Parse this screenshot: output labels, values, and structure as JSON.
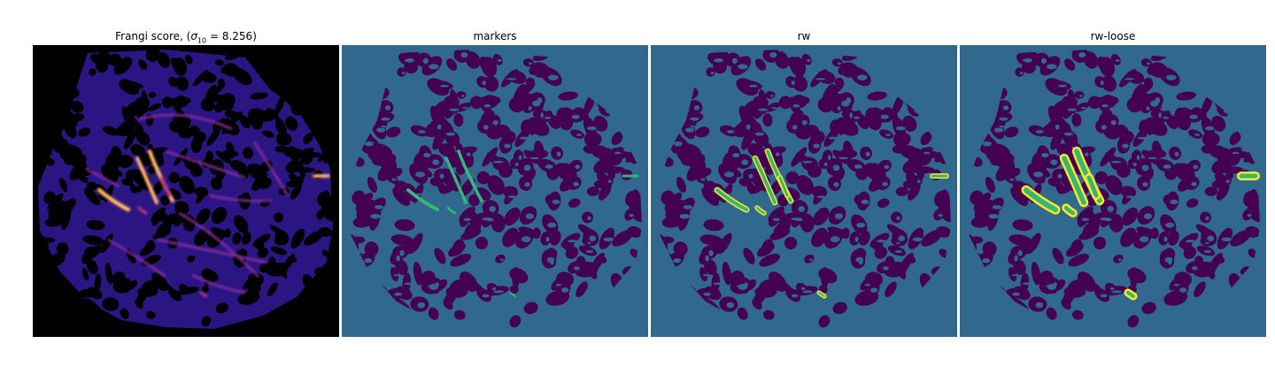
{
  "panels": [
    {
      "title_prefix": "Frangi score, (",
      "sigma_symbol": "σ",
      "sigma_sub": "10",
      "title_suffix": " = 8.256)",
      "style": "frangi"
    },
    {
      "title": "markers",
      "style": "markers"
    },
    {
      "title": "rw",
      "style": "rw"
    },
    {
      "title": "rw-loose",
      "style": "rw-loose"
    }
  ],
  "colors": {
    "frangi_bg": "#000000",
    "frangi_field": "#2a1583",
    "frangi_hot": "#f08a3c",
    "frangi_peak": "#fde6a0",
    "seg_background": "#31688e",
    "seg_tissue": "#440154",
    "marker_green": "#35b779",
    "rw_yellow": "#fde725"
  }
}
